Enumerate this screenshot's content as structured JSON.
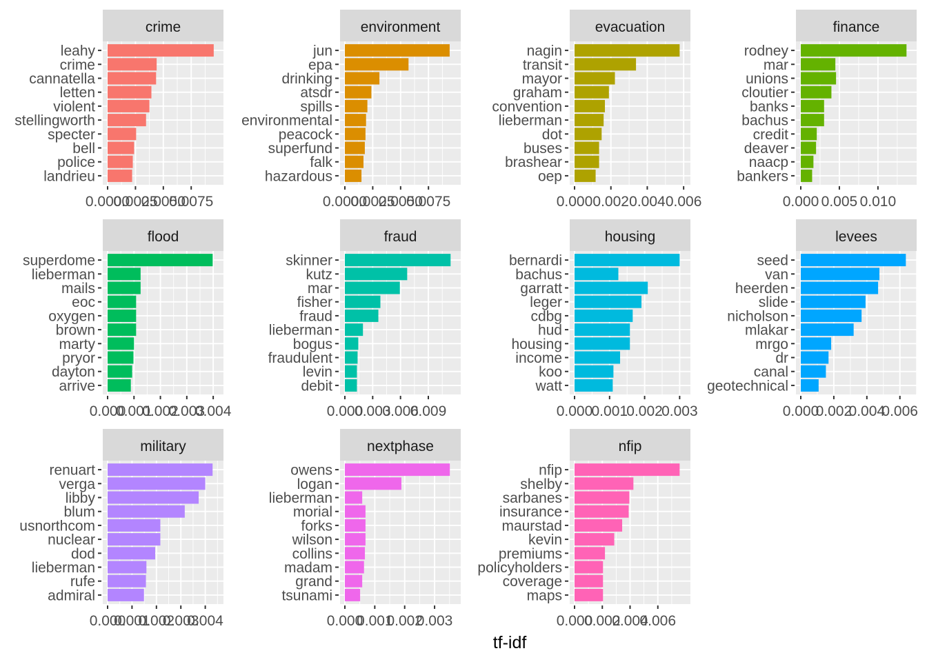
{
  "chart_data": {
    "type": "bar",
    "orientation": "horizontal",
    "layout": "facet_wrap 4 columns, free scales",
    "xlabel": "tf-idf",
    "ylabel": "",
    "title": "",
    "legend": "none",
    "grid": true,
    "facets": [
      {
        "name": "crime",
        "color": "#F8766D",
        "xlim": [
          0,
          0.0099
        ],
        "ticks": [
          0,
          0.0025,
          0.005,
          0.0075
        ],
        "tick_labels": [
          "0.0000",
          "0.0025",
          "0.0050",
          "0.0075"
        ],
        "categories": [
          "leahy",
          "crime",
          "cannatella",
          "letten",
          "violent",
          "stellingworth",
          "specter",
          "bell",
          "police",
          "landrieu"
        ],
        "values": [
          0.00952,
          0.0044,
          0.00435,
          0.00393,
          0.00375,
          0.00345,
          0.00256,
          0.00238,
          0.00226,
          0.0022
        ]
      },
      {
        "name": "environment",
        "color": "#DB8E00",
        "xlim": [
          0,
          0.0099
        ],
        "ticks": [
          0,
          0.0025,
          0.005,
          0.0075
        ],
        "tick_labels": [
          "0.0000",
          "0.0025",
          "0.0050",
          "0.0075"
        ],
        "categories": [
          "jun",
          "epa",
          "drinking",
          "atsdr",
          "spills",
          "environmental",
          "peacock",
          "superfund",
          "falk",
          "hazardous"
        ],
        "values": [
          0.0094,
          0.00571,
          0.0031,
          0.00238,
          0.00202,
          0.0019,
          0.00185,
          0.00179,
          0.00167,
          0.00149
        ]
      },
      {
        "name": "evacuation",
        "color": "#AEA200",
        "xlim": [
          0,
          0.00607
        ],
        "ticks": [
          0,
          0.002,
          0.004,
          0.006
        ],
        "tick_labels": [
          "0.000",
          "0.002",
          "0.004",
          "0.006"
        ],
        "categories": [
          "nagin",
          "transit",
          "mayor",
          "graham",
          "convention",
          "lieberman",
          "dot",
          "buses",
          "brashear",
          "oep"
        ],
        "values": [
          0.00578,
          0.00338,
          0.00222,
          0.00189,
          0.00167,
          0.0016,
          0.00149,
          0.00135,
          0.00135,
          0.00116
        ]
      },
      {
        "name": "finance",
        "color": "#64B200",
        "xlim": [
          0,
          0.0143
        ],
        "ticks": [
          0,
          0.005,
          0.01
        ],
        "tick_labels": [
          "0.000",
          "0.005",
          "0.010"
        ],
        "categories": [
          "rodney",
          "mar",
          "unions",
          "cloutier",
          "banks",
          "bachus",
          "credit",
          "deaver",
          "naacp",
          "bankers"
        ],
        "values": [
          0.0137,
          0.00448,
          0.00457,
          0.00397,
          0.00302,
          0.00302,
          0.00207,
          0.00198,
          0.00164,
          0.00147
        ]
      },
      {
        "name": "flood",
        "color": "#00BD5C",
        "xlim": [
          0,
          0.00418
        ],
        "ticks": [
          0,
          0.001,
          0.002,
          0.003,
          0.004
        ],
        "tick_labels": [
          "0.000",
          "0.001",
          "0.002",
          "0.003",
          "0.004"
        ],
        "categories": [
          "superdome",
          "lieberman",
          "mails",
          "eoc",
          "oxygen",
          "brown",
          "marty",
          "pryor",
          "dayton",
          "arrive"
        ],
        "values": [
          0.00398,
          0.00125,
          0.00125,
          0.00108,
          0.00108,
          0.00108,
          0.001,
          0.00098,
          0.00093,
          0.00088
        ]
      },
      {
        "name": "fraud",
        "color": "#00C1A7",
        "xlim": [
          0,
          0.0119
        ],
        "ticks": [
          0,
          0.003,
          0.006,
          0.009
        ],
        "tick_labels": [
          "0.000",
          "0.003",
          "0.006",
          "0.009"
        ],
        "categories": [
          "skinner",
          "kutz",
          "mar",
          "fisher",
          "fraud",
          "lieberman",
          "bogus",
          "fraudulent",
          "levin",
          "debit"
        ],
        "values": [
          0.0114,
          0.00672,
          0.00593,
          0.00383,
          0.00361,
          0.00195,
          0.00145,
          0.00137,
          0.0013,
          0.0013
        ]
      },
      {
        "name": "housing",
        "color": "#00BADE",
        "xlim": [
          0,
          0.00315
        ],
        "ticks": [
          0,
          0.001,
          0.002,
          0.003
        ],
        "tick_labels": [
          "0.000",
          "0.001",
          "0.002",
          "0.003"
        ],
        "categories": [
          "bernardi",
          "bachus",
          "garratt",
          "leger",
          "cdbg",
          "hud",
          "housing",
          "income",
          "koo",
          "watt"
        ],
        "values": [
          0.003,
          0.00125,
          0.00209,
          0.00191,
          0.00166,
          0.00158,
          0.00158,
          0.0013,
          0.00111,
          0.00109
        ]
      },
      {
        "name": "levees",
        "color": "#00A6FF",
        "xlim": [
          0,
          0.00668
        ],
        "ticks": [
          0,
          0.002,
          0.004,
          0.006
        ],
        "tick_labels": [
          "0.000",
          "0.002",
          "0.004",
          "0.006"
        ],
        "categories": [
          "seed",
          "van",
          "heerden",
          "slide",
          "nicholson",
          "mlakar",
          "mrgo",
          "dr",
          "canal",
          "geotechnical"
        ],
        "values": [
          0.00636,
          0.00476,
          0.00468,
          0.00392,
          0.00368,
          0.0032,
          0.00184,
          0.00168,
          0.00152,
          0.00108
        ]
      },
      {
        "name": "military",
        "color": "#B385FF",
        "xlim": [
          0,
          0.00452
        ],
        "ticks": [
          0,
          0.001,
          0.002,
          0.003,
          0.004
        ],
        "tick_labels": [
          "0.000",
          "0.001",
          "0.002",
          "0.003",
          "0.004"
        ],
        "categories": [
          "renuart",
          "verga",
          "libby",
          "blum",
          "usnorthcom",
          "nuclear",
          "dod",
          "lieberman",
          "rufe",
          "admiral"
        ],
        "values": [
          0.0043,
          0.004,
          0.00373,
          0.00316,
          0.00216,
          0.00216,
          0.00195,
          0.00159,
          0.00157,
          0.00149
        ]
      },
      {
        "name": "nextphase",
        "color": "#EF67EB",
        "xlim": [
          0,
          0.00369
        ],
        "ticks": [
          0,
          0.001,
          0.002,
          0.003
        ],
        "tick_labels": [
          "0.000",
          "0.001",
          "0.002",
          "0.003"
        ],
        "categories": [
          "owens",
          "logan",
          "lieberman",
          "morial",
          "forks",
          "wilson",
          "collins",
          "madam",
          "grand",
          "tsunami"
        ],
        "values": [
          0.00351,
          0.00189,
          0.00058,
          0.00069,
          0.00069,
          0.00069,
          0.00067,
          0.00064,
          0.00058,
          0.00051
        ]
      },
      {
        "name": "nfip",
        "color": "#FF63B6",
        "xlim": [
          0,
          0.00795
        ],
        "ticks": [
          0,
          0.002,
          0.004,
          0.006
        ],
        "tick_labels": [
          "0.000",
          "0.002",
          "0.004",
          "0.006"
        ],
        "categories": [
          "nfip",
          "shelby",
          "sarbanes",
          "insurance",
          "maurstad",
          "kevin",
          "premiums",
          "policyholders",
          "coverage",
          "maps"
        ],
        "values": [
          0.00757,
          0.00424,
          0.00395,
          0.0039,
          0.00343,
          0.00286,
          0.00219,
          0.00205,
          0.00205,
          0.00205
        ]
      }
    ]
  }
}
